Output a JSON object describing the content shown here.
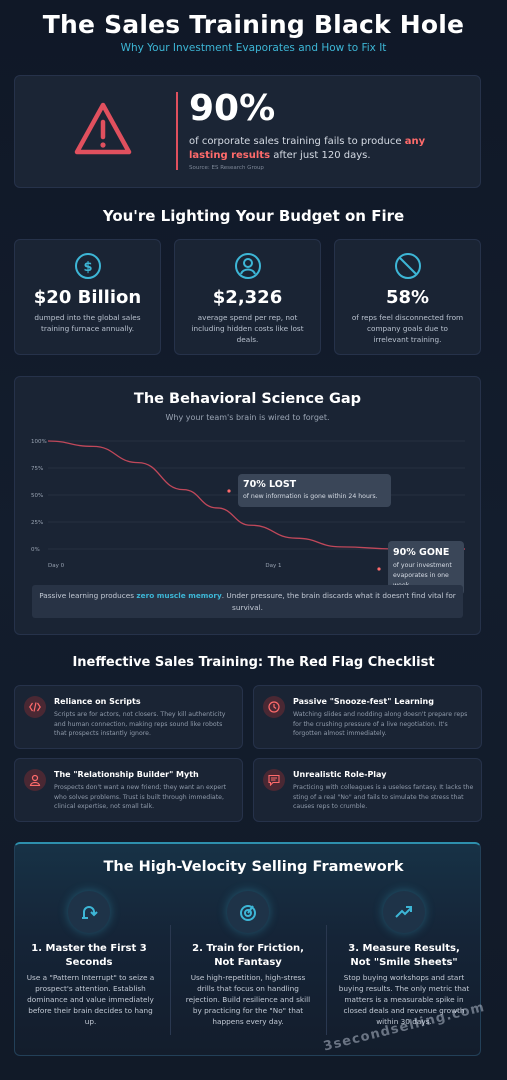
{
  "header": {
    "title": "The Sales Training Black Hole",
    "subtitle": "Why Your Investment Evaporates and How to Fix It"
  },
  "hero": {
    "icon": "warning-triangle-icon",
    "percent": "90%",
    "text_pre": "of corporate sales training fails to produce ",
    "text_highlight": "any lasting results",
    "text_post": " after just 120 days.",
    "source": "Source: ES Research Group"
  },
  "budget": {
    "title": "You're Lighting Your Budget on Fire",
    "cards": [
      {
        "icon": "dollar-icon",
        "value": "$20 Billion",
        "text": "dumped into the global sales training furnace annually."
      },
      {
        "icon": "person-icon",
        "value": "$2,326",
        "text": "average spend per rep, not including hidden costs like lost deals."
      },
      {
        "icon": "prohibited-icon",
        "value": "58%",
        "text": "of reps feel disconnected from company goals due to irrelevant training."
      }
    ]
  },
  "science": {
    "title": "The Behavioral Science Gap",
    "subtitle": "Why your team's brain is wired to forget.",
    "callout1_title": "70% LOST",
    "callout1_text": "of new information is gone within 24 hours.",
    "callout2_title": "90% GONE",
    "callout2_text": "of your investment evaporates in one week.",
    "note_pre": "Passive learning produces ",
    "note_highlight": "zero muscle memory",
    "note_post": ". Under pressure, the brain discards what it doesn't find vital for survival."
  },
  "chart_data": {
    "type": "line",
    "series": [
      {
        "values": [
          {
            "x": 0,
            "y": 100
          },
          {
            "x": 0.2,
            "y": 95
          },
          {
            "x": 0.4,
            "y": 80
          },
          {
            "x": 0.6,
            "y": 55
          },
          {
            "x": 0.75,
            "y": 38
          },
          {
            "x": 0.9,
            "y": 22
          },
          {
            "x": 1.1,
            "y": 10
          },
          {
            "x": 1.3,
            "y": 2
          },
          {
            "x": 1.55,
            "y": 0
          },
          {
            "x": 1.85,
            "y": 0
          }
        ]
      }
    ],
    "x_ticks": [
      "Day 0",
      "Day 1"
    ],
    "y_ticks": [
      "100%",
      "75%",
      "50%",
      "25%",
      "0%"
    ],
    "ylim": [
      0,
      100
    ],
    "line_color": "#c0485a"
  },
  "checklist": {
    "title": "Ineffective Sales Training: The Red Flag Checklist",
    "items": [
      {
        "icon": "code-icon",
        "title": "Reliance on Scripts",
        "text": "Scripts are for actors, not closers. They kill authenticity and human connection, making reps sound like robots that prospects instantly ignore."
      },
      {
        "icon": "clock-icon",
        "title": "Passive \"Snooze-fest\" Learning",
        "text": "Watching slides and nodding along doesn't prepare reps for the crushing pressure of a live negotiation. It's forgotten almost immediately."
      },
      {
        "icon": "user-icon",
        "title": "The \"Relationship Builder\" Myth",
        "text": "Prospects don't want a new friend; they want an expert who solves problems. Trust is built through immediate, clinical expertise, not small talk."
      },
      {
        "icon": "chat-icon",
        "title": "Unrealistic Role-Play",
        "text": "Practicing with colleagues is a useless fantasy. It lacks the sting of a real \"No\" and fails to simulate the stress that causes reps to crumble."
      }
    ]
  },
  "framework": {
    "title": "The High-Velocity Selling Framework",
    "items": [
      {
        "icon": "redo-arrow-icon",
        "title": "1. Master the First 3 Seconds",
        "text": "Use a \"Pattern Interrupt\" to seize a prospect's attention. Establish dominance and value immediately before their brain decides to hang up."
      },
      {
        "icon": "target-icon",
        "title": "2. Train for Friction, Not Fantasy",
        "text": "Use high-repetition, high-stress drills that focus on handling rejection. Build resilience and skill by practicing for the \"No\" that happens every day."
      },
      {
        "icon": "trend-up-icon",
        "title": "3. Measure Results, Not \"Smile Sheets\"",
        "text": "Stop buying workshops and start buying results. The only metric that matters is a measurable spike in closed deals and revenue growth within 30 days."
      }
    ]
  },
  "watermark": "3secondselling.com",
  "colors": {
    "accent": "#3db6d6",
    "warning": "#e0505e",
    "highlight": "#ff6b6b"
  }
}
